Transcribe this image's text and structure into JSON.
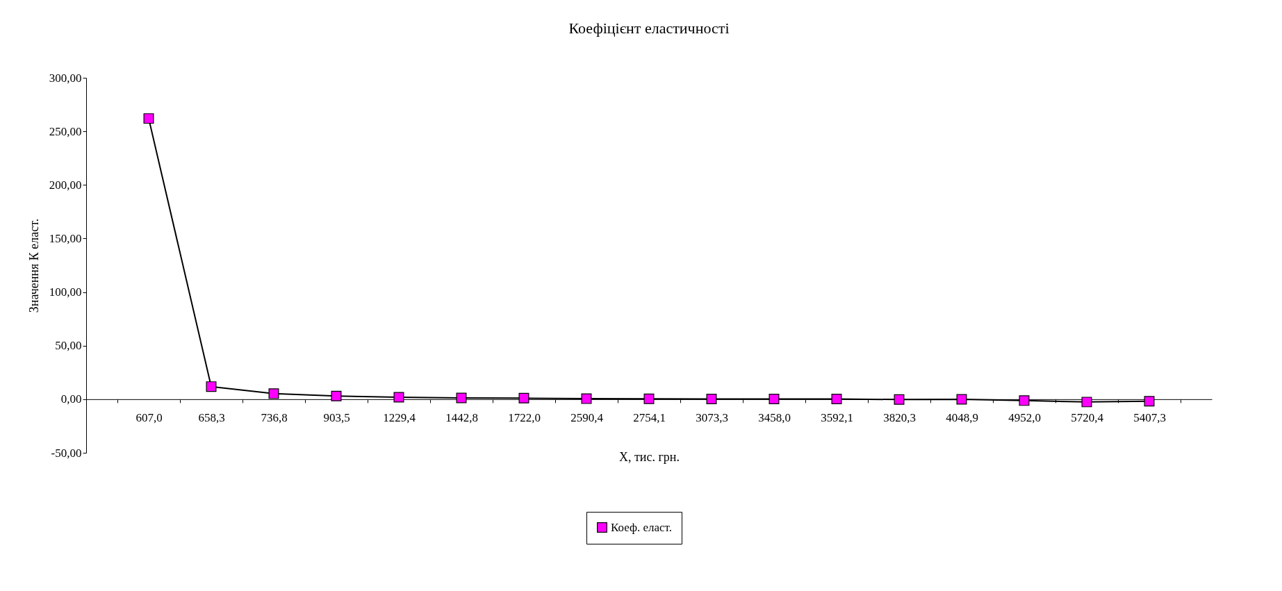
{
  "chart_data": {
    "type": "line",
    "title": "Коефіцієнт еластичності",
    "xlabel": "X, тис. грн.",
    "ylabel": "Значення К еласт.",
    "categories": [
      "607,0",
      "658,3",
      "736,8",
      "903,5",
      "1229,4",
      "1442,8",
      "1722,0",
      "2590,4",
      "2754,1",
      "3073,3",
      "3458,0",
      "3592,1",
      "3820,3",
      "4048,9",
      "4952,0",
      "5720,4",
      "5407,3"
    ],
    "series": [
      {
        "name": "Коеф. еласт.",
        "color": "#ff00ff",
        "values": [
          262,
          11.8,
          5.2,
          3.0,
          1.8,
          1.2,
          1.0,
          0.5,
          0.4,
          0.2,
          0.2,
          0.2,
          -0.3,
          -0.1,
          -1.3,
          -2.6,
          -1.9
        ]
      }
    ],
    "ylim": [
      -50,
      300
    ],
    "yticks": [
      {
        "value": -50,
        "label": "-50,00"
      },
      {
        "value": 0,
        "label": "0,00"
      },
      {
        "value": 50,
        "label": "50,00"
      },
      {
        "value": 100,
        "label": "100,00"
      },
      {
        "value": 150,
        "label": "150,00"
      },
      {
        "value": 200,
        "label": "200,00"
      },
      {
        "value": 250,
        "label": "250,00"
      },
      {
        "value": 300,
        "label": "300,00"
      }
    ],
    "marker": "square",
    "line_style": "solid",
    "grid": false,
    "legend": "bottom"
  }
}
